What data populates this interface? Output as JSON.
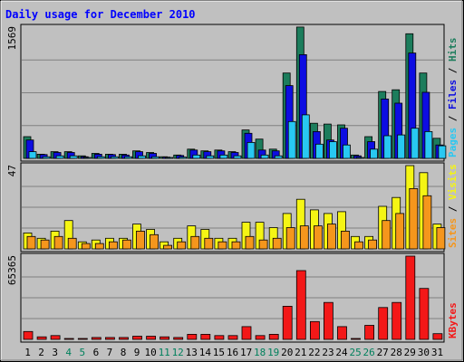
{
  "chart_data": {
    "type": "bar",
    "title": "Daily usage for December 2010",
    "days": [
      "1",
      "2",
      "3",
      "4",
      "5",
      "6",
      "7",
      "8",
      "9",
      "10",
      "11",
      "12",
      "13",
      "14",
      "15",
      "16",
      "17",
      "18",
      "19",
      "20",
      "21",
      "22",
      "23",
      "24",
      "25",
      "26",
      "27",
      "28",
      "29",
      "30",
      "31"
    ],
    "weekend_days": [
      4,
      5,
      11,
      12,
      18,
      19,
      25,
      26
    ],
    "grid": true,
    "panels": [
      {
        "id": "hits_files_pages",
        "scale_label": "1569",
        "max": 1569,
        "legend": [
          "Pages",
          "Files",
          "Hits"
        ],
        "series": [
          {
            "name": "Hits",
            "color": "#1c7d5c",
            "values": [
              260,
              50,
              80,
              80,
              30,
              60,
              50,
              50,
              90,
              70,
              20,
              40,
              110,
              90,
              100,
              80,
              340,
              230,
              110,
              1020,
              1570,
              420,
              410,
              400,
              40,
              260,
              800,
              820,
              1490,
              1020,
              240
            ]
          },
          {
            "name": "Files",
            "color": "#0d0de2",
            "values": [
              220,
              45,
              70,
              70,
              20,
              50,
              45,
              40,
              80,
              60,
              15,
              35,
              100,
              80,
              90,
              70,
              300,
              100,
              90,
              870,
              1240,
              320,
              220,
              360,
              30,
              200,
              710,
              660,
              1260,
              790,
              160
            ]
          },
          {
            "name": "Pages",
            "color": "#28c8f2",
            "values": [
              80,
              20,
              30,
              30,
              10,
              20,
              20,
              20,
              30,
              20,
              10,
              15,
              40,
              30,
              40,
              30,
              190,
              40,
              30,
              440,
              520,
              170,
              200,
              160,
              10,
              110,
              270,
              280,
              360,
              320,
              150
            ]
          }
        ]
      },
      {
        "id": "visits_sites",
        "scale_label": "47",
        "max": 47,
        "legend": [
          "Sites",
          "Visits"
        ],
        "series": [
          {
            "name": "Visits",
            "color": "#f5f514",
            "values": [
              9,
              6,
              10,
              16,
              4,
              5,
              6,
              6,
              14,
              11,
              4,
              6,
              13,
              11,
              6,
              6,
              15,
              15,
              12,
              20,
              28,
              22,
              20,
              21,
              7,
              7,
              24,
              29,
              47,
              43,
              14
            ]
          },
          {
            "name": "Sites",
            "color": "#f5961c",
            "values": [
              7,
              5,
              7,
              6,
              3,
              3,
              4,
              5,
              10,
              8,
              2,
              4,
              7,
              6,
              4,
              4,
              7,
              5,
              6,
              12,
              13,
              13,
              14,
              10,
              4,
              5,
              16,
              20,
              34,
              30,
              12
            ]
          }
        ]
      },
      {
        "id": "kbytes",
        "scale_label": "65365",
        "max": 65365,
        "legend": [
          "KBytes"
        ],
        "series": [
          {
            "name": "KBytes",
            "color": "#f31818",
            "values": [
              6200,
              2000,
              3000,
              500,
              500,
              1500,
              1500,
              1500,
              2500,
              2500,
              2000,
              1500,
              4000,
              4000,
              3000,
              3000,
              10000,
              3000,
              4000,
              26000,
              54000,
              14000,
              29000,
              10000,
              500,
              11000,
              25000,
              29000,
              65365,
              40000,
              4500
            ]
          }
        ]
      }
    ]
  },
  "colors": {
    "background": "#c0c0c0",
    "title_color": "#0000ff",
    "weekday_label": "#000000",
    "weekend_label": "#00805c",
    "grid": "#808080",
    "legend_separator": "#000000"
  }
}
